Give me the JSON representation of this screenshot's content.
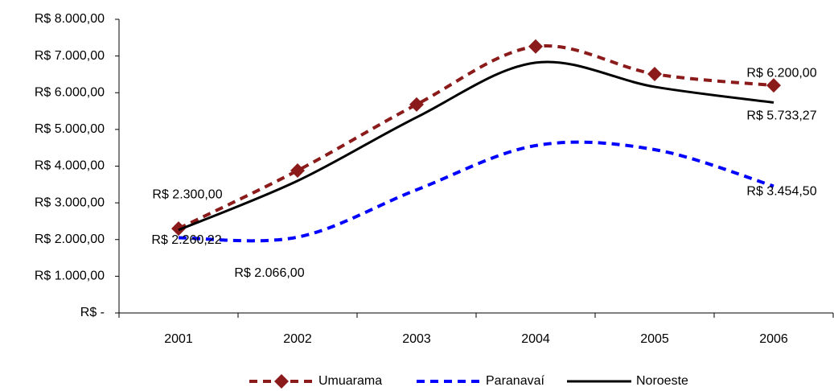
{
  "chart_data": {
    "type": "line",
    "categories": [
      "2001",
      "2002",
      "2003",
      "2004",
      "2005",
      "2006"
    ],
    "series": [
      {
        "name": "Umuarama",
        "color": "#8b1a1a",
        "dashed": true,
        "marker": "diamond",
        "values": [
          2300,
          3880,
          5680,
          7260,
          6510,
          6200
        ],
        "value_labels": [
          "R$ 2.300,00",
          null,
          null,
          null,
          null,
          "R$ 6.200,00"
        ]
      },
      {
        "name": "Paranavaí",
        "color": "#0000ff",
        "dashed": true,
        "values": [
          2050,
          2066,
          3355,
          4560,
          4450,
          3454.5
        ],
        "value_labels": [
          null,
          "R$ 2.066,00",
          null,
          null,
          null,
          "R$ 3.454,50"
        ]
      },
      {
        "name": "Noroeste",
        "color": "#000000",
        "dashed": false,
        "values": [
          2260.22,
          3600,
          5330,
          6820,
          6160,
          5733.27
        ],
        "value_labels": [
          "R$ 2.260,22",
          null,
          null,
          null,
          null,
          "R$ 5.733,27"
        ]
      }
    ],
    "ylim": [
      0,
      8000
    ],
    "yticks": [
      {
        "value": 0,
        "label": "R$ -"
      },
      {
        "value": 1000,
        "label": "R$ 1.000,00"
      },
      {
        "value": 2000,
        "label": "R$ 2.000,00"
      },
      {
        "value": 3000,
        "label": "R$ 3.000,00"
      },
      {
        "value": 4000,
        "label": "R$ 4.000,00"
      },
      {
        "value": 5000,
        "label": "R$ 5.000,00"
      },
      {
        "value": 6000,
        "label": "R$ 6.000,00"
      },
      {
        "value": 7000,
        "label": "R$ 7.000,00"
      },
      {
        "value": 8000,
        "label": "R$ 8.000,00"
      }
    ],
    "legend": "bottom"
  }
}
